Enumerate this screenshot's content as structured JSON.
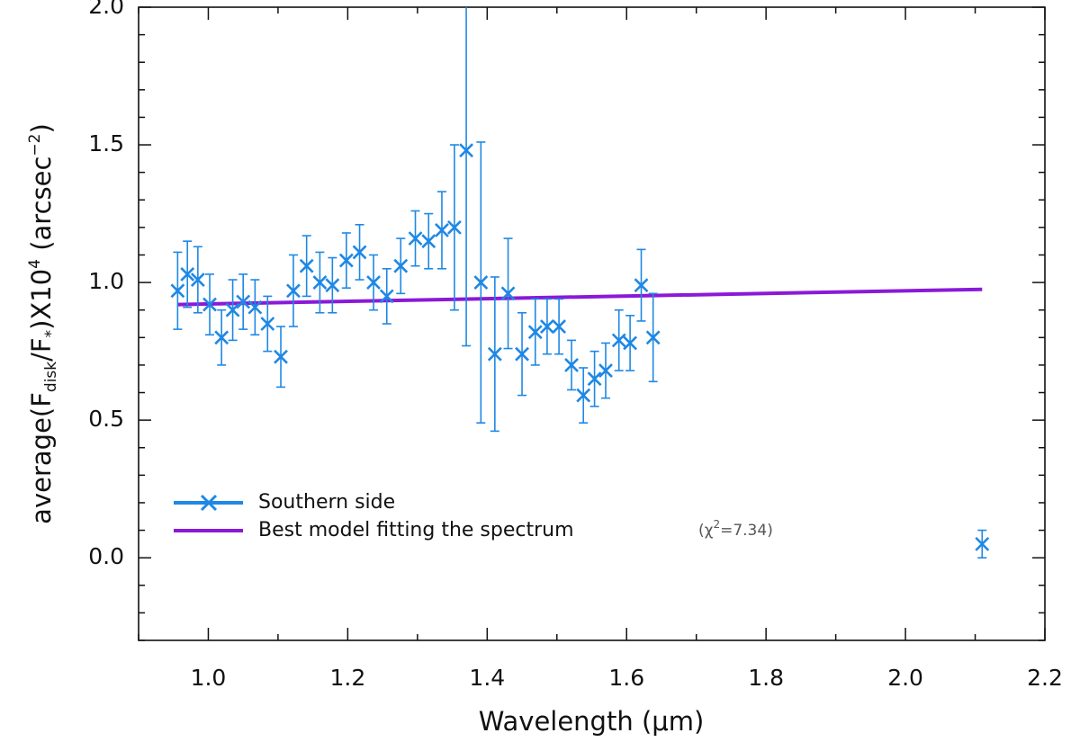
{
  "chart_data": {
    "type": "scatter",
    "xlabel_text": "Wavelength (",
    "xlabel_unit": "μm",
    "xlabel_close": ")",
    "ylabel_prefix": "average(F",
    "ylabel_disk_sub": "disk",
    "ylabel_slash": "/F",
    "ylabel_star_sub": "*",
    "ylabel_times": ")X10",
    "ylabel_exp": "4",
    "ylabel_unit_open": " (arcsec",
    "ylabel_unit_exp": "−2",
    "ylabel_unit_close": ")",
    "xlim": [
      0.9,
      2.2
    ],
    "ylim": [
      -0.3,
      2.0
    ],
    "xticks": [
      1.0,
      1.2,
      1.4,
      1.6,
      1.8,
      2.0,
      2.2
    ],
    "xtick_labels": [
      "1.0",
      "1.2",
      "1.4",
      "1.6",
      "1.8",
      "2.0",
      "2.2"
    ],
    "yticks": [
      0.0,
      0.5,
      1.0,
      1.5,
      2.0
    ],
    "ytick_labels": [
      "0.0",
      "0.5",
      "1.0",
      "1.5",
      "2.0"
    ],
    "series": [
      {
        "name": "Southern side",
        "color": "#1E88E5",
        "marker": "x",
        "points": [
          {
            "x": 0.956,
            "y": 0.97,
            "err": 0.14
          },
          {
            "x": 0.97,
            "y": 1.03,
            "err": 0.12
          },
          {
            "x": 0.985,
            "y": 1.01,
            "err": 0.12
          },
          {
            "x": 1.002,
            "y": 0.92,
            "err": 0.11
          },
          {
            "x": 1.019,
            "y": 0.8,
            "err": 0.1
          },
          {
            "x": 1.035,
            "y": 0.9,
            "err": 0.11
          },
          {
            "x": 1.05,
            "y": 0.93,
            "err": 0.1
          },
          {
            "x": 1.067,
            "y": 0.91,
            "err": 0.1
          },
          {
            "x": 1.085,
            "y": 0.85,
            "err": 0.1
          },
          {
            "x": 1.104,
            "y": 0.73,
            "err": 0.11
          },
          {
            "x": 1.122,
            "y": 0.97,
            "err": 0.13
          },
          {
            "x": 1.141,
            "y": 1.06,
            "err": 0.11
          },
          {
            "x": 1.16,
            "y": 1.0,
            "err": 0.11
          },
          {
            "x": 1.178,
            "y": 0.99,
            "err": 0.1
          },
          {
            "x": 1.198,
            "y": 1.08,
            "err": 0.1
          },
          {
            "x": 1.217,
            "y": 1.11,
            "err": 0.1
          },
          {
            "x": 1.237,
            "y": 1.0,
            "err": 0.1
          },
          {
            "x": 1.256,
            "y": 0.95,
            "err": 0.1
          },
          {
            "x": 1.276,
            "y": 1.06,
            "err": 0.1
          },
          {
            "x": 1.297,
            "y": 1.16,
            "err": 0.1
          },
          {
            "x": 1.316,
            "y": 1.15,
            "err": 0.1
          },
          {
            "x": 1.335,
            "y": 1.19,
            "err": 0.14
          },
          {
            "x": 1.353,
            "y": 1.2,
            "err": 0.3
          },
          {
            "x": 1.37,
            "y": 1.48,
            "err": 0.71
          },
          {
            "x": 1.391,
            "y": 1.0,
            "err": 0.51
          },
          {
            "x": 1.411,
            "y": 0.74,
            "err": 0.28
          },
          {
            "x": 1.43,
            "y": 0.96,
            "err": 0.2
          },
          {
            "x": 1.45,
            "y": 0.74,
            "err": 0.15
          },
          {
            "x": 1.469,
            "y": 0.82,
            "err": 0.12
          },
          {
            "x": 1.486,
            "y": 0.84,
            "err": 0.1
          },
          {
            "x": 1.503,
            "y": 0.84,
            "err": 0.1
          },
          {
            "x": 1.521,
            "y": 0.7,
            "err": 0.09
          },
          {
            "x": 1.538,
            "y": 0.59,
            "err": 0.1
          },
          {
            "x": 1.554,
            "y": 0.65,
            "err": 0.1
          },
          {
            "x": 1.57,
            "y": 0.68,
            "err": 0.1
          },
          {
            "x": 1.589,
            "y": 0.79,
            "err": 0.11
          },
          {
            "x": 1.605,
            "y": 0.78,
            "err": 0.1
          },
          {
            "x": 1.621,
            "y": 0.99,
            "err": 0.13
          },
          {
            "x": 1.638,
            "y": 0.8,
            "err": 0.16
          },
          {
            "x": 2.11,
            "y": 0.05,
            "err": 0.05
          }
        ]
      },
      {
        "name": "Best model fitting the spectrum",
        "color": "#8A19D8",
        "marker": "line",
        "points": [
          {
            "x": 0.956,
            "y": 0.92
          },
          {
            "x": 2.11,
            "y": 0.975
          }
        ]
      }
    ],
    "chi_prefix": "(χ",
    "chi_exp": "2",
    "chi_value": "=7.34)",
    "legend_position": "lower-left"
  }
}
